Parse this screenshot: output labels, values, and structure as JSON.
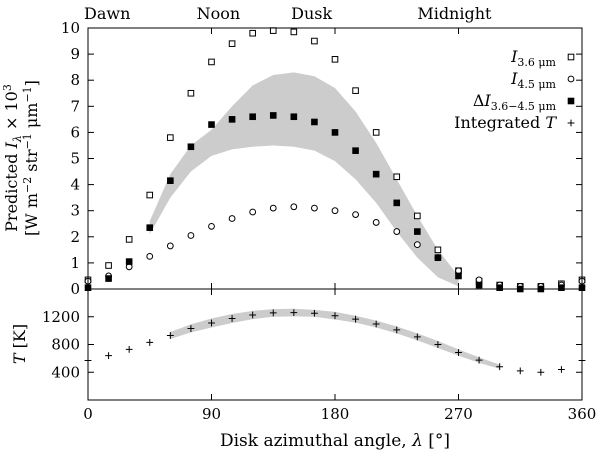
{
  "chart_data": {
    "type": "scatter",
    "xlabel_tokens": [
      [
        "Disk azimuthal angle, ",
        ""
      ],
      [
        "λ",
        "i"
      ],
      [
        " [°]",
        ""
      ]
    ],
    "xlim": [
      0,
      360
    ],
    "xticks": [
      0,
      90,
      180,
      270,
      360
    ],
    "x_deg": [
      0,
      15,
      30,
      45,
      60,
      75,
      90,
      105,
      120,
      135,
      150,
      165,
      180,
      195,
      210,
      225,
      240,
      255,
      270,
      285,
      300,
      315,
      330,
      345,
      360
    ],
    "top_axis_labels": [
      {
        "text": "Dawn",
        "lambda": 14
      },
      {
        "text": "Noon",
        "lambda": 95
      },
      {
        "text": "Dusk",
        "lambda": 163
      },
      {
        "text": "Midnight",
        "lambda": 267
      }
    ],
    "band_color": "#cccccc",
    "top_panel": {
      "ylabel_line1_tokens": [
        [
          "Predicted ",
          ""
        ],
        [
          "I",
          "i"
        ],
        [
          "λ",
          "i-sub"
        ],
        [
          " × 10",
          ""
        ],
        [
          "3",
          "sup"
        ]
      ],
      "ylabel_line2_tokens": [
        [
          "[W m",
          ""
        ],
        [
          "−2",
          "sup"
        ],
        [
          " str",
          ""
        ],
        [
          "−1",
          "sup"
        ],
        [
          " μm",
          ""
        ],
        [
          "−1",
          "sup"
        ],
        [
          "]",
          ""
        ]
      ],
      "ylim": [
        0,
        10
      ],
      "yticks": [
        0,
        1,
        2,
        3,
        4,
        5,
        6,
        7,
        8,
        9,
        10
      ],
      "series": [
        {
          "name": "I_3.6um",
          "marker": "square-open",
          "values": [
            0.35,
            0.9,
            1.9,
            3.6,
            5.8,
            7.5,
            8.7,
            9.4,
            9.8,
            9.9,
            9.85,
            9.5,
            8.8,
            7.6,
            6.0,
            4.3,
            2.8,
            1.5,
            0.7,
            0.3,
            0.15,
            0.1,
            0.1,
            0.2,
            0.35
          ]
        },
        {
          "name": "I_4.5um",
          "marker": "circle-open",
          "values": [
            0.3,
            0.5,
            0.85,
            1.25,
            1.65,
            2.05,
            2.4,
            2.7,
            2.95,
            3.1,
            3.15,
            3.1,
            3.0,
            2.85,
            2.55,
            2.2,
            1.7,
            1.2,
            0.7,
            0.35,
            0.15,
            0.1,
            0.1,
            0.15,
            0.3
          ]
        },
        {
          "name": "dI_3.6-4.5um",
          "marker": "square-filled",
          "values": [
            0.05,
            0.4,
            1.05,
            2.35,
            4.15,
            5.45,
            6.3,
            6.5,
            6.6,
            6.65,
            6.6,
            6.4,
            6.0,
            5.3,
            4.4,
            3.3,
            2.2,
            1.2,
            0.5,
            0.15,
            0.05,
            0.0,
            0.0,
            0.05,
            0.05
          ]
        }
      ],
      "band": {
        "x": [
          45,
          60,
          75,
          90,
          105,
          120,
          135,
          150,
          165,
          180,
          195,
          210,
          225,
          240,
          255,
          270
        ],
        "upper": [
          2.6,
          4.4,
          5.5,
          6.1,
          7.0,
          7.8,
          8.2,
          8.3,
          8.15,
          7.7,
          6.8,
          5.6,
          4.2,
          2.8,
          1.5,
          0.5
        ],
        "lower": [
          2.1,
          3.5,
          4.5,
          5.1,
          5.35,
          5.45,
          5.5,
          5.45,
          5.3,
          4.9,
          4.2,
          3.3,
          2.2,
          1.2,
          0.45,
          0.1
        ]
      }
    },
    "bottom_panel": {
      "ylabel_tokens": [
        [
          "T",
          "i"
        ],
        [
          " [K]",
          ""
        ]
      ],
      "ylim": [
        0,
        1600
      ],
      "yticks": [
        400,
        800,
        1200
      ],
      "series": [
        {
          "name": "Integrated T",
          "marker": "plus",
          "values": [
            570,
            640,
            730,
            830,
            930,
            1030,
            1110,
            1175,
            1225,
            1255,
            1260,
            1250,
            1215,
            1165,
            1095,
            1010,
            910,
            800,
            685,
            575,
            480,
            420,
            400,
            440,
            570
          ]
        }
      ],
      "band": {
        "x": [
          60,
          75,
          90,
          105,
          120,
          135,
          150,
          165,
          180,
          195,
          210,
          225,
          240,
          255,
          270,
          285,
          300
        ],
        "upper": [
          980,
          1090,
          1175,
          1240,
          1285,
          1310,
          1315,
          1300,
          1270,
          1215,
          1145,
          1060,
          960,
          850,
          730,
          615,
          510
        ],
        "lower": [
          880,
          975,
          1045,
          1110,
          1165,
          1200,
          1205,
          1200,
          1160,
          1115,
          1045,
          960,
          860,
          750,
          640,
          535,
          450
        ]
      }
    },
    "legend": {
      "position": "top-right",
      "entries": [
        {
          "tokens": [
            [
              "I",
              "i"
            ],
            [
              "3.6 μm",
              "sub"
            ]
          ],
          "marker": "square-open"
        },
        {
          "tokens": [
            [
              "I",
              "i"
            ],
            [
              "4.5 μm",
              "sub"
            ]
          ],
          "marker": "circle-open"
        },
        {
          "tokens": [
            [
              "Δ",
              ""
            ],
            [
              "I",
              "i"
            ],
            [
              "3.6−4.5 μm",
              "sub"
            ]
          ],
          "marker": "square-filled"
        },
        {
          "tokens": [
            [
              "Integrated ",
              ""
            ],
            [
              "T",
              "i"
            ]
          ],
          "marker": "plus"
        }
      ]
    }
  }
}
